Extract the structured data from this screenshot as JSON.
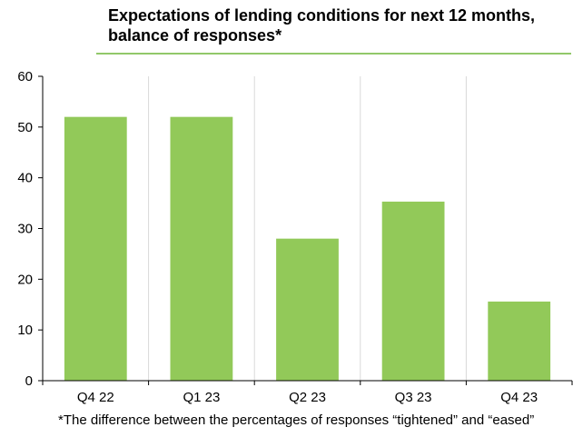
{
  "chart_data": {
    "type": "bar",
    "title": "Expectations of lending conditions for next 12 months, balance of responses*",
    "categories": [
      "Q4 22",
      "Q1 23",
      "Q2 23",
      "Q3 23",
      "Q4 23"
    ],
    "values": [
      52,
      52,
      28,
      35.3,
      15.6
    ],
    "xlabel": "",
    "ylabel": "",
    "ylim": [
      0,
      60
    ],
    "yticks": [
      "0",
      "10",
      "20",
      "30",
      "40",
      "50",
      "60"
    ],
    "grid": "vertical",
    "legend": "none",
    "footnote": "*The difference between the percentages of responses “tightened” and “eased”"
  },
  "colors": {
    "bar": "#92c959",
    "gridline": "#d9d9d9",
    "title_rule": "#92c86a",
    "axis": "#000000"
  }
}
